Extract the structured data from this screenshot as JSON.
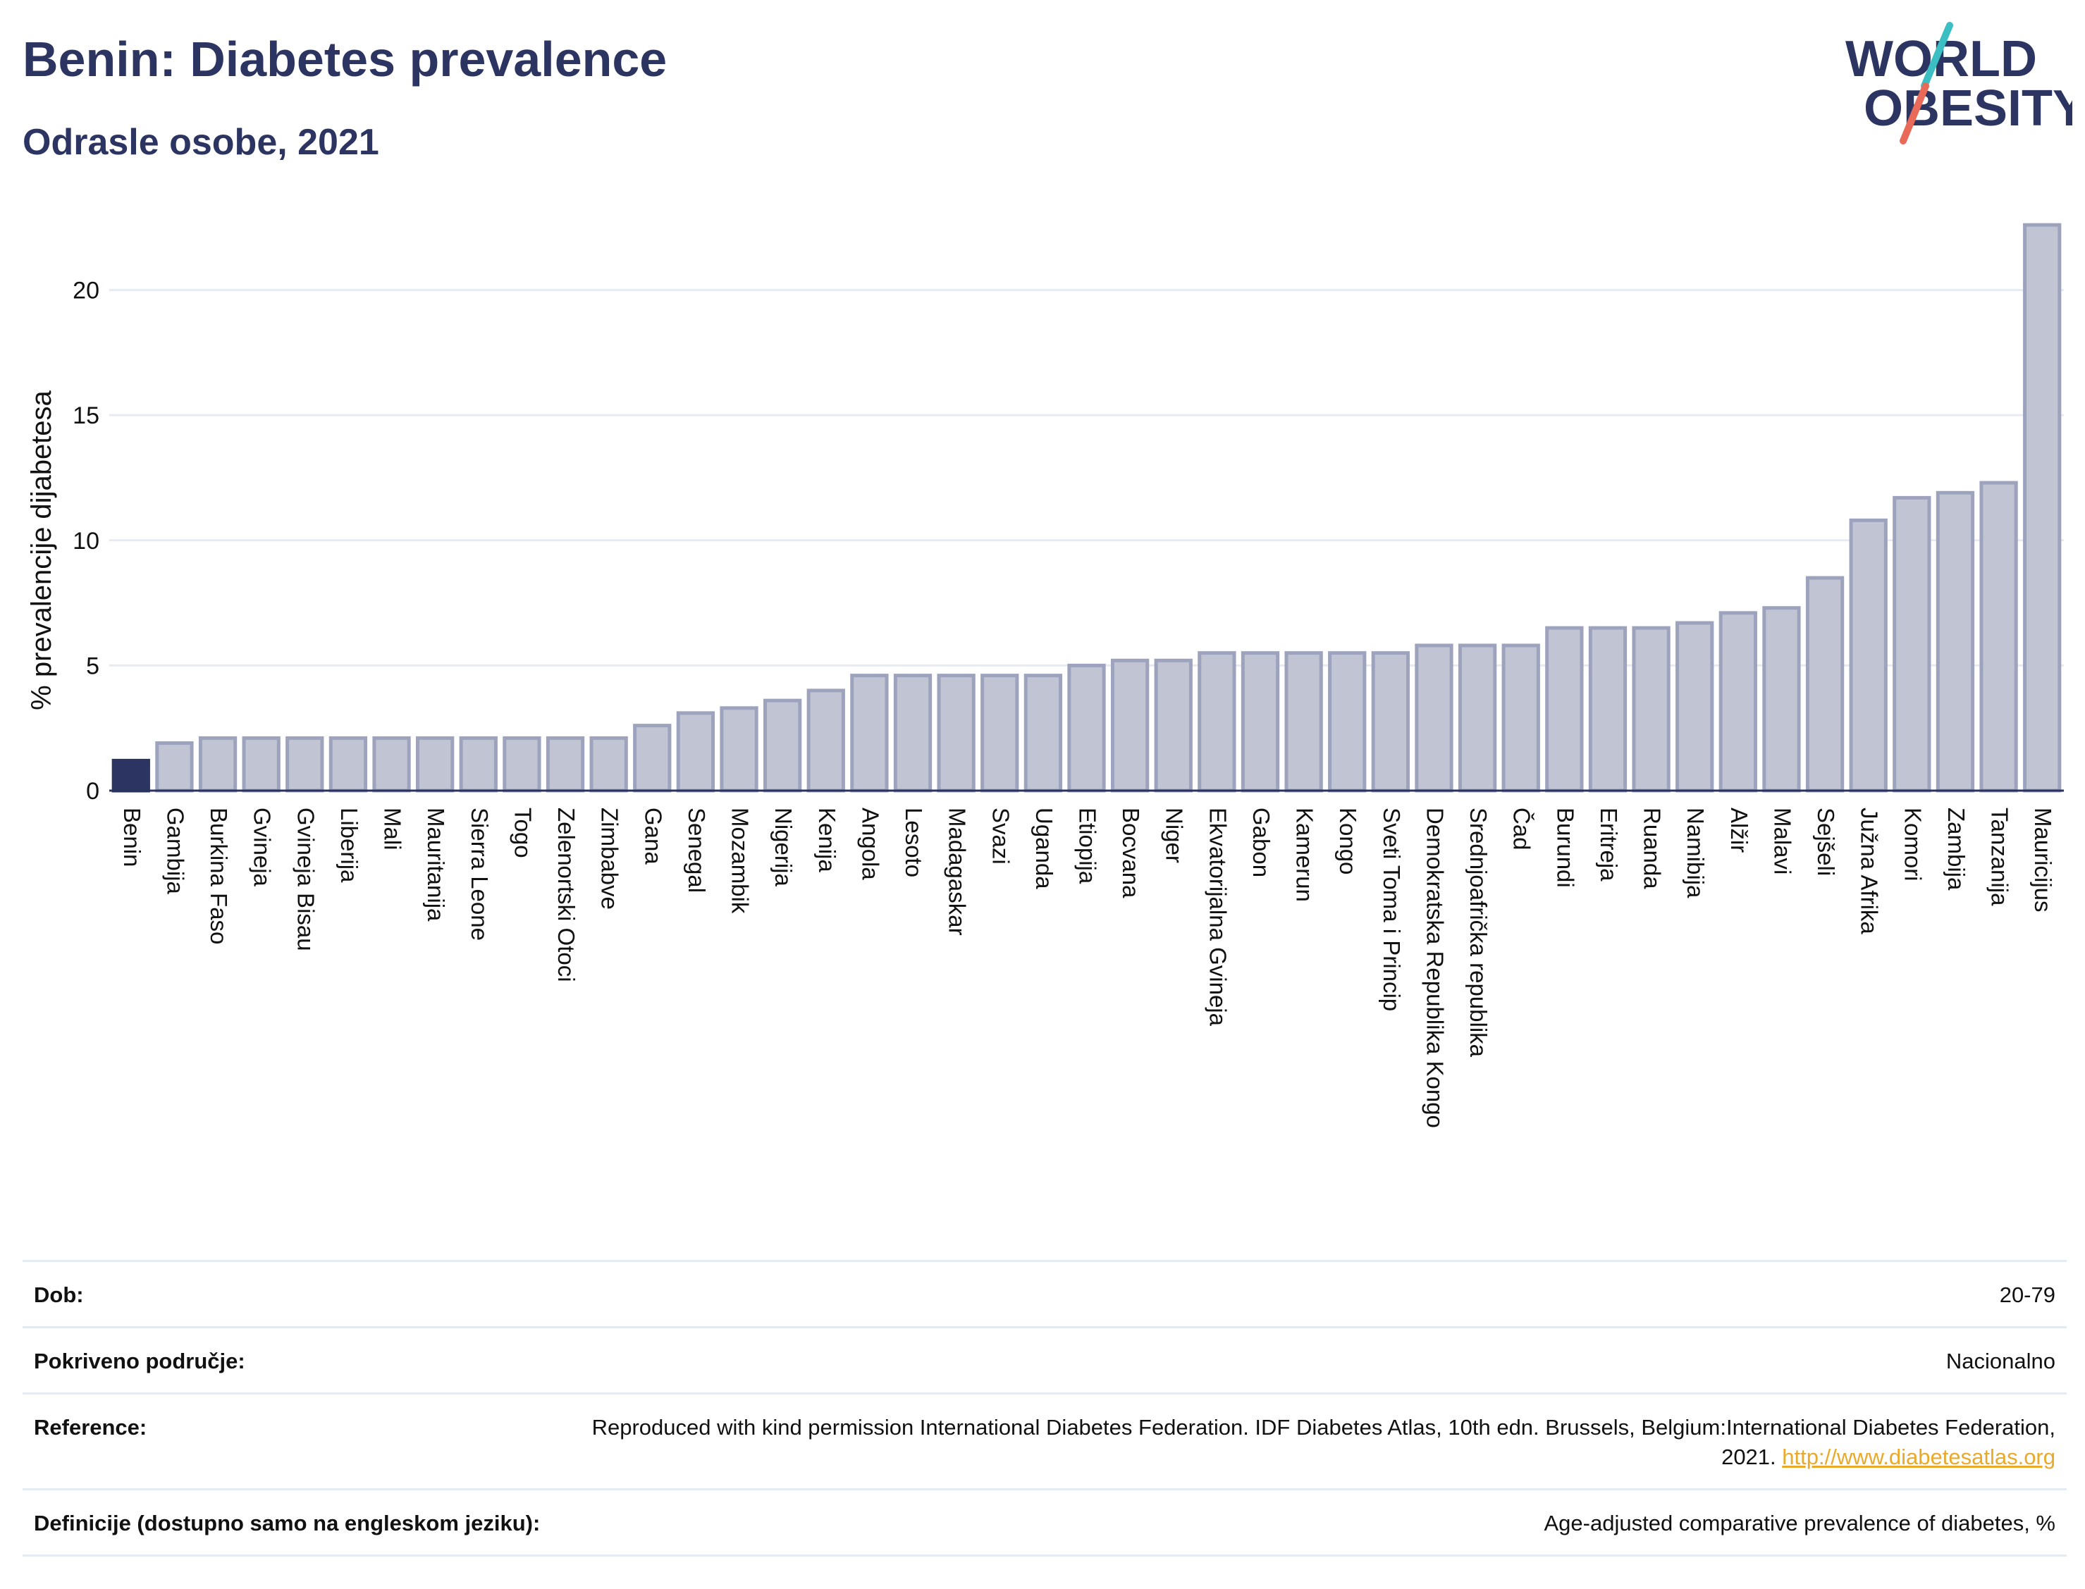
{
  "header": {
    "title": "Benin: Diabetes prevalence",
    "subtitle": "Odrasle osobe, 2021"
  },
  "logo": {
    "line1": "WORLD",
    "line2": "OBESITY",
    "colors": {
      "text": "#2c3561",
      "slash_top": "#3bbfc2",
      "slash_bottom": "#ea6a5a"
    }
  },
  "chart_data": {
    "type": "bar",
    "ylabel": "% prevalencije dijabetesa",
    "ylim": [
      0,
      23
    ],
    "yticks": [
      0,
      5,
      10,
      15,
      20
    ],
    "grid": true,
    "highlight": "Benin",
    "colors": {
      "highlight": "#2c3561",
      "bar_fill": "#c0c4d3",
      "bar_stroke": "#9ea3bd",
      "grid": "#e6ebf3"
    },
    "categories": [
      "Benin",
      "Gambija",
      "Burkina Faso",
      "Gvineja",
      "Gvineja Bisau",
      "Liberija",
      "Mali",
      "Mauritanija",
      "Sierra Leone",
      "Togo",
      "Zelenortski Otoci",
      "Zimbabve",
      "Gana",
      "Senegal",
      "Mozambik",
      "Nigerija",
      "Kenija",
      "Angola",
      "Lesoto",
      "Madagaskar",
      "Svazi",
      "Uganda",
      "Etiopija",
      "Bocvana",
      "Niger",
      "Ekvatorijalna Gvineja",
      "Gabon",
      "Kamerun",
      "Kongo",
      "Sveti Toma i Princip",
      "Demokratska Republika Kongo",
      "Srednjoafrička republika",
      "Čad",
      "Burundi",
      "Eritreja",
      "Ruanda",
      "Namibija",
      "Alžir",
      "Malavi",
      "Sejšeli",
      "Južna Afrika",
      "Komori",
      "Zambija",
      "Tanzanija",
      "Mauricijus"
    ],
    "values": [
      1.2,
      1.9,
      2.1,
      2.1,
      2.1,
      2.1,
      2.1,
      2.1,
      2.1,
      2.1,
      2.1,
      2.1,
      2.6,
      3.1,
      3.3,
      3.6,
      4.0,
      4.6,
      4.6,
      4.6,
      4.6,
      4.6,
      5.0,
      5.2,
      5.2,
      5.5,
      5.5,
      5.5,
      5.5,
      5.5,
      5.8,
      5.8,
      5.8,
      6.5,
      6.5,
      6.5,
      6.7,
      7.1,
      7.3,
      8.5,
      10.8,
      11.7,
      11.9,
      12.3,
      22.6
    ]
  },
  "info": {
    "rows": [
      {
        "label": "Dob:",
        "value": "20-79"
      },
      {
        "label": "Pokriveno područje:",
        "value": "Nacionalno"
      },
      {
        "label": "Reference:",
        "value": "Reproduced with kind permission International Diabetes Federation.  IDF Diabetes Atlas, 10th edn. Brussels, Belgium:International Diabetes Federation, 2021. ",
        "link": "http://www.diabetesatlas.org"
      },
      {
        "label": "Definicije (dostupno samo na engleskom jeziku):",
        "value": "Age-adjusted comparative prevalence of diabetes, %"
      }
    ]
  }
}
